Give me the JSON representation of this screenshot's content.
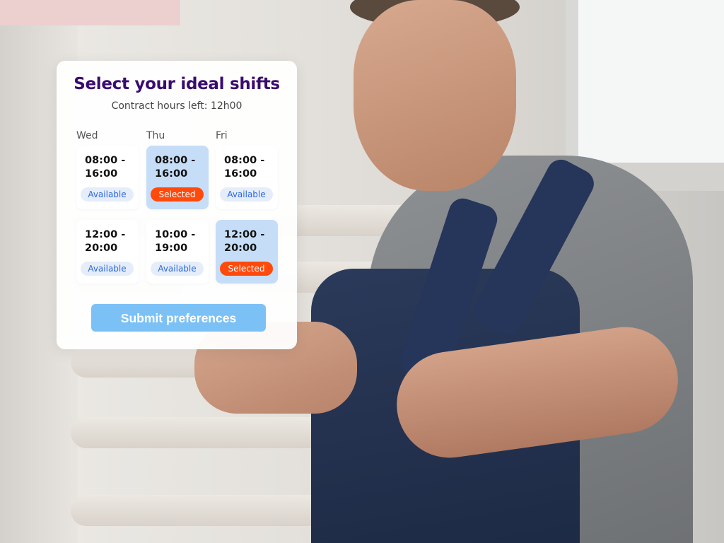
{
  "card": {
    "title": "Select your ideal shifts",
    "subtitle": "Contract hours left: 12h00",
    "days": [
      "Wed",
      "Thu",
      "Fri"
    ],
    "shifts": [
      {
        "day": "Wed",
        "time": "08:00 - 16:00",
        "status": "Available",
        "selected": false
      },
      {
        "day": "Thu",
        "time": "08:00 - 16:00",
        "status": "Selected",
        "selected": true
      },
      {
        "day": "Fri",
        "time": "08:00 - 16:00",
        "status": "Available",
        "selected": false
      },
      {
        "day": "Wed",
        "time": "12:00 - 20:00",
        "status": "Available",
        "selected": false
      },
      {
        "day": "Thu",
        "time": "10:00 - 19:00",
        "status": "Available",
        "selected": false
      },
      {
        "day": "Fri",
        "time": "12:00 - 20:00",
        "status": "Selected",
        "selected": true
      }
    ],
    "submit_label": "Submit preferences"
  },
  "colors": {
    "title": "#3a0b6e",
    "selected_badge": "#ff4a0c",
    "selected_tile": "#c6ddf7",
    "available_text": "#2c68dd",
    "button": "#7cc1f6"
  }
}
